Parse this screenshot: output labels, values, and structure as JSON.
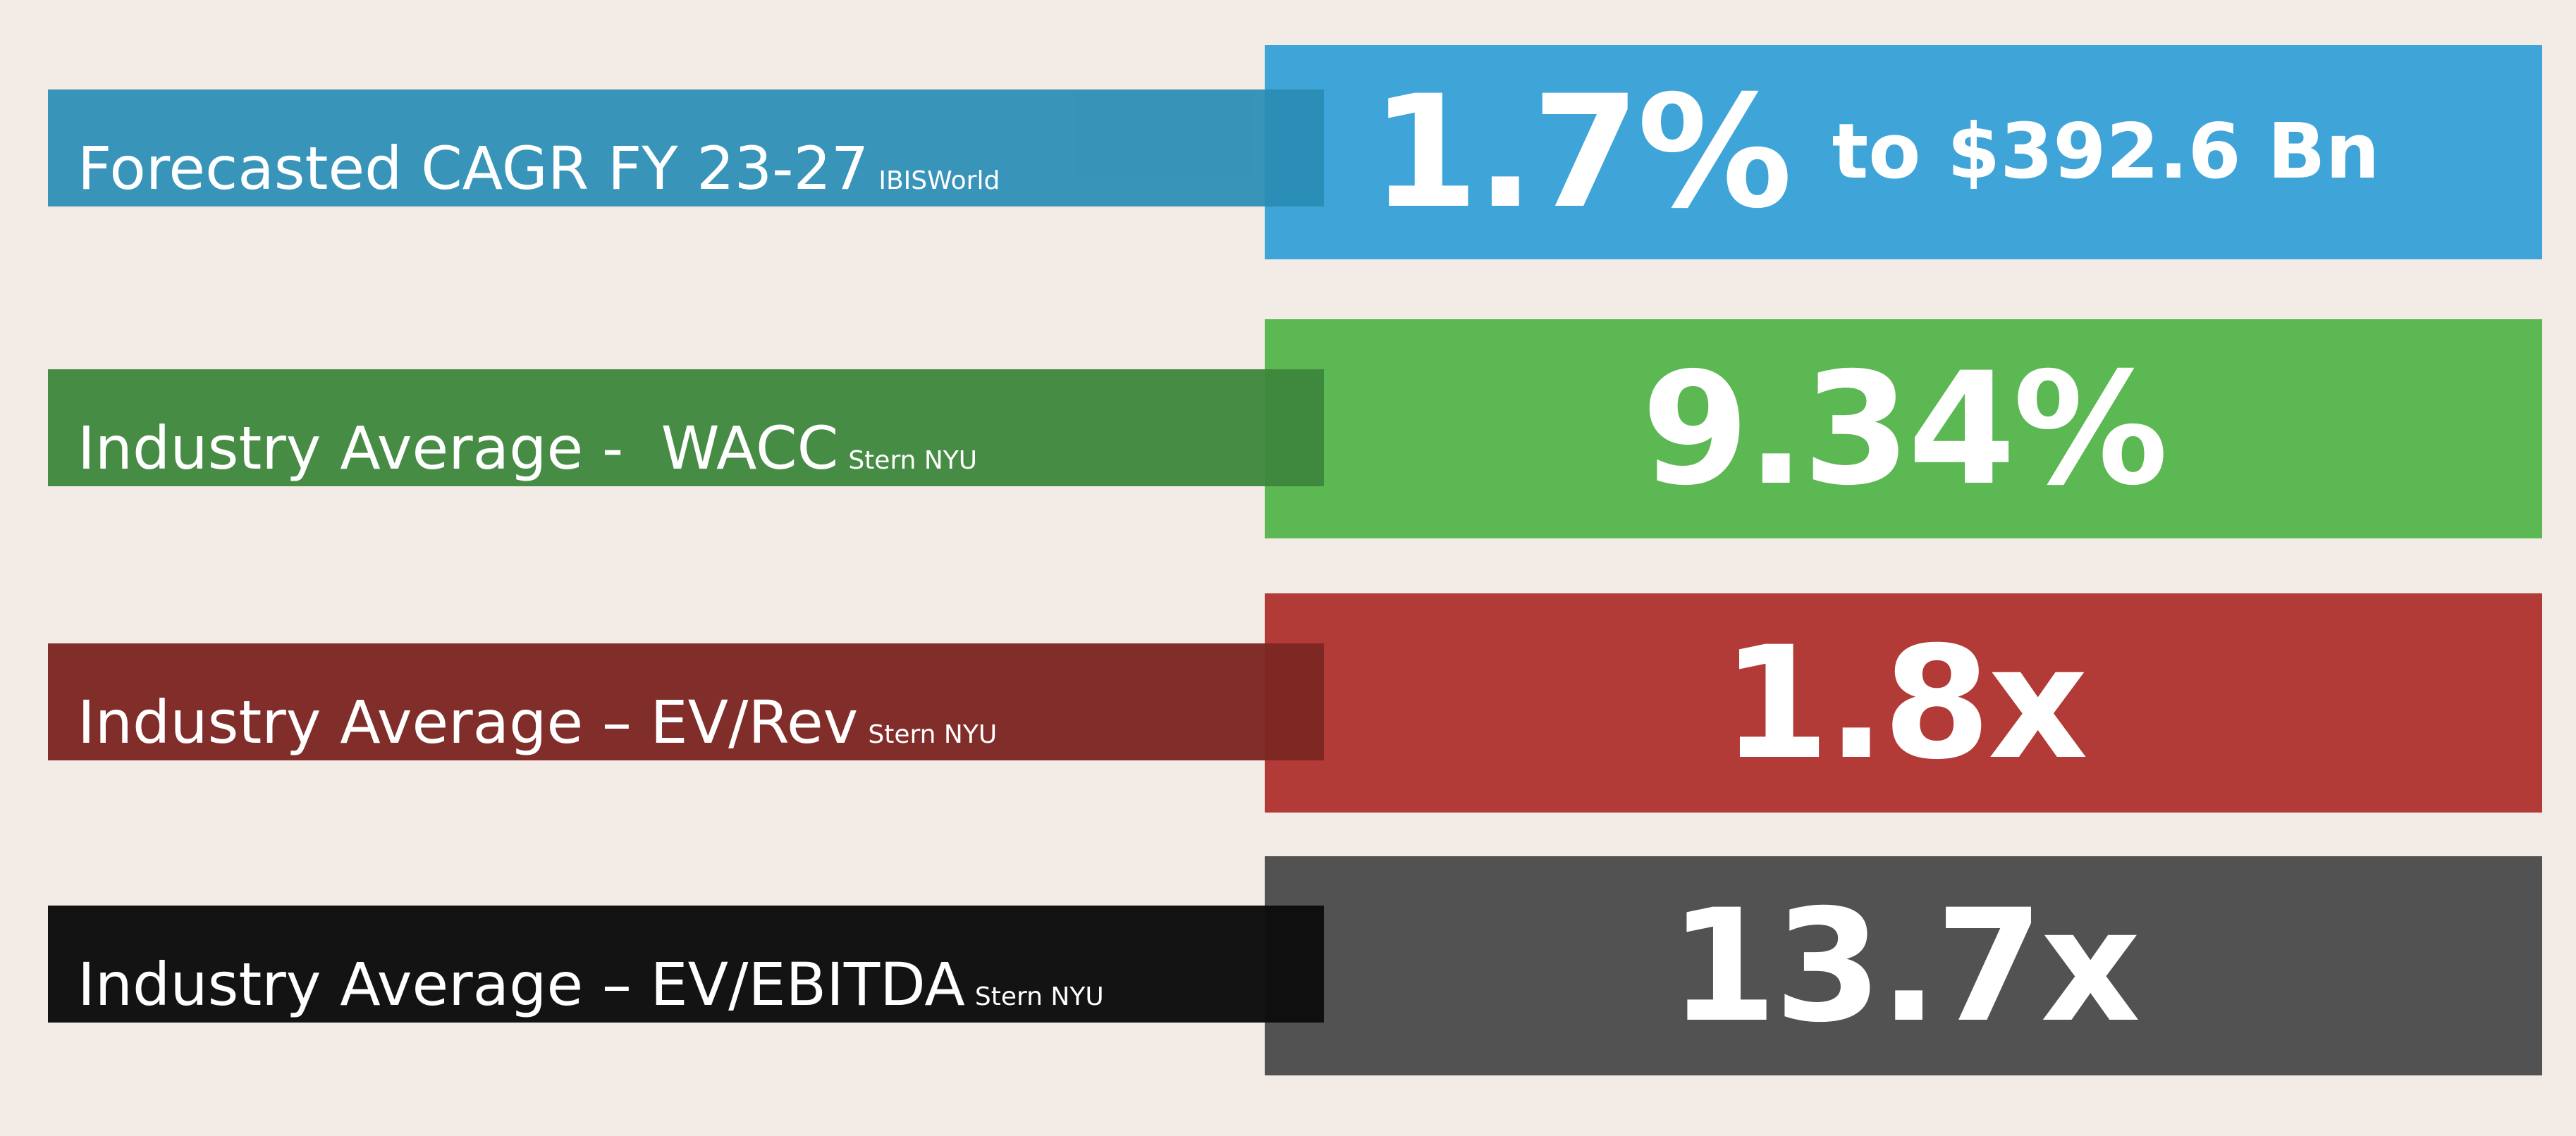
{
  "stats": [
    {
      "label": "Forecasted CAGR FY 23-27",
      "source": "IBISWorld",
      "value": "1.7%",
      "value_suffix": "to $392.6 Bn",
      "color": "#3fa4d8"
    },
    {
      "label": "Industry Average -  WACC",
      "source": "Stern NYU",
      "value": "9.34%",
      "value_suffix": "",
      "color": "#5cb853"
    },
    {
      "label": "Industry Average – EV/Rev",
      "source": "Stern NYU",
      "value": "1.8x",
      "value_suffix": "",
      "color": "#b23a37"
    },
    {
      "label": "Industry Average – EV/EBITDA",
      "source": "Stern NYU",
      "value": "13.7x",
      "value_suffix": "",
      "color": "#525252"
    }
  ]
}
